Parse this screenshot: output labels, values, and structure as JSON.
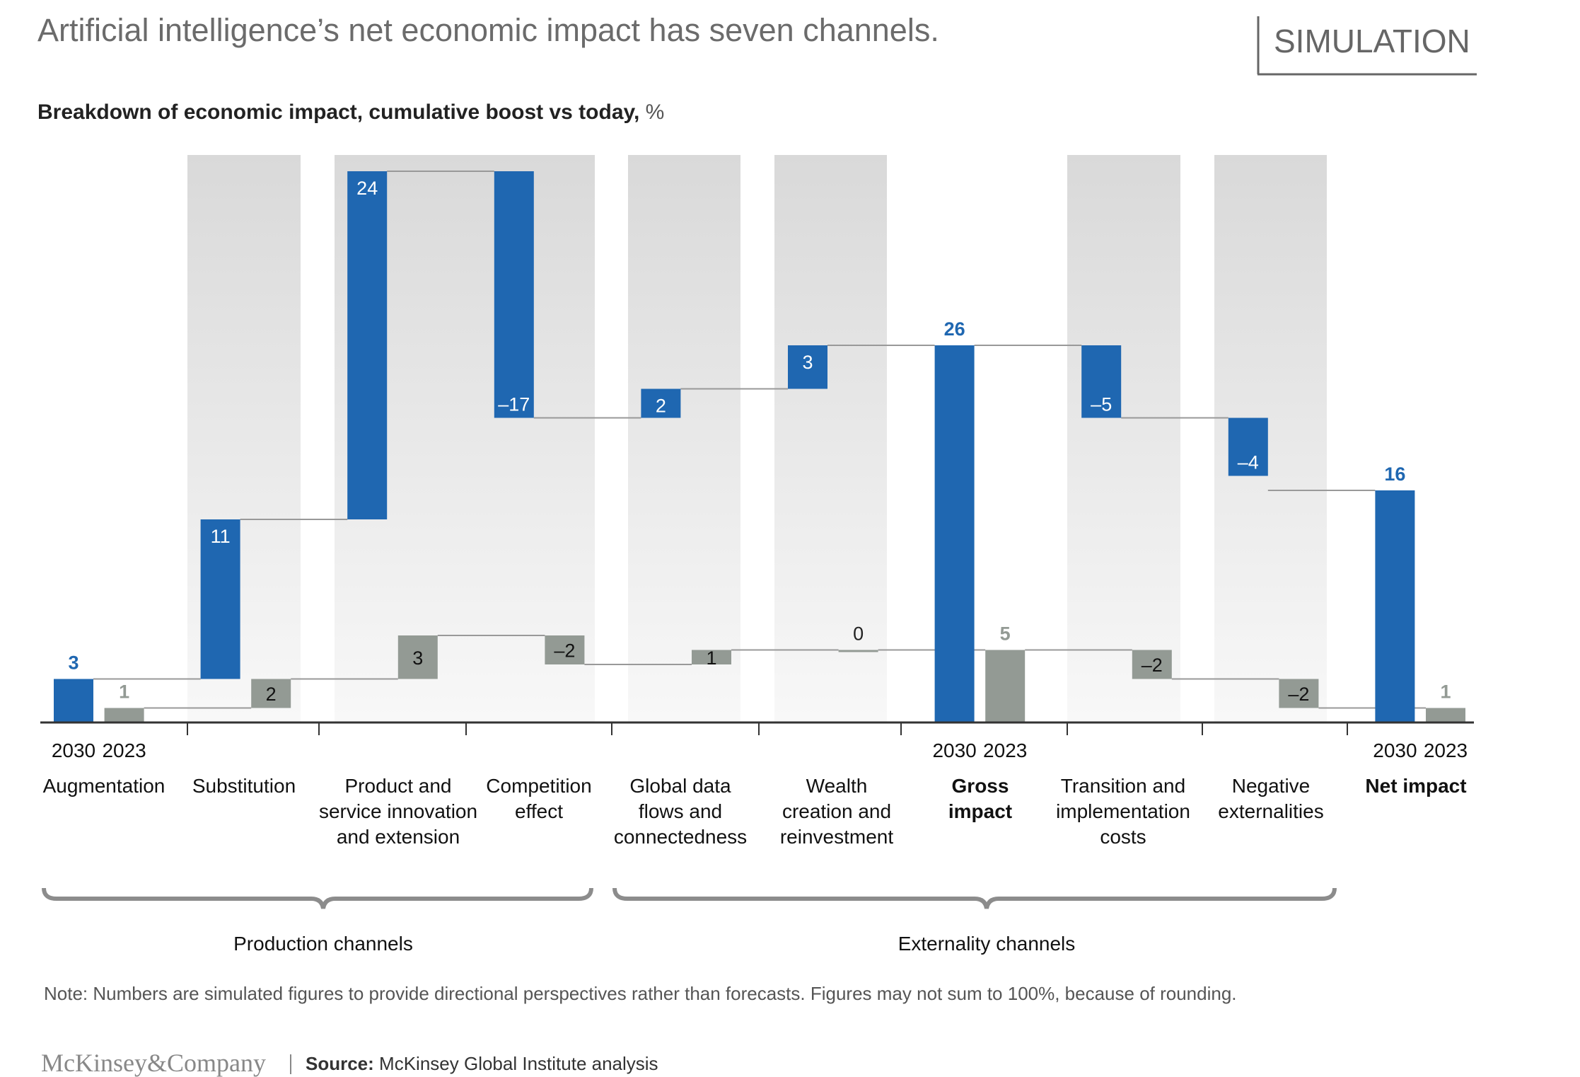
{
  "header": {
    "title": "Artificial intelligence’s net economic impact has seven channels.",
    "badge": "SIMULATION",
    "subtitle": "Breakdown of economic impact, cumulative boost vs today,",
    "subtitle_unit": "%"
  },
  "chart_data": {
    "type": "waterfall",
    "title": "Breakdown of economic impact, cumulative boost vs today, %",
    "categories": [
      {
        "lines": [
          "Augmentation"
        ],
        "bold": false,
        "total": false
      },
      {
        "lines": [
          "Substitution"
        ],
        "bold": false,
        "total": false
      },
      {
        "lines": [
          "Product and",
          "service innovation",
          "and extension"
        ],
        "bold": false,
        "total": false
      },
      {
        "lines": [
          "Competition",
          "effect"
        ],
        "bold": false,
        "total": false
      },
      {
        "lines": [
          "Global data",
          "flows and",
          "connectedness"
        ],
        "bold": false,
        "total": false
      },
      {
        "lines": [
          "Wealth",
          "creation and",
          "reinvestment"
        ],
        "bold": false,
        "total": false
      },
      {
        "lines": [
          "Gross",
          "impact"
        ],
        "bold": true,
        "total": true
      },
      {
        "lines": [
          "Transition and",
          "implementation",
          "costs"
        ],
        "bold": false,
        "total": false
      },
      {
        "lines": [
          "Negative",
          "externalities"
        ],
        "bold": false,
        "total": false
      },
      {
        "lines": [
          "Net impact"
        ],
        "bold": true,
        "total": true
      }
    ],
    "series": [
      {
        "name": "2030",
        "color": "#1f67b1",
        "values": [
          3,
          11,
          24,
          -17,
          2,
          3,
          26,
          -5,
          -4,
          16
        ],
        "labels": [
          "3",
          "11",
          "24",
          "–17",
          "2",
          "3",
          "26",
          "–5",
          "–4",
          "16"
        ]
      },
      {
        "name": "2023",
        "color": "#939a94",
        "values": [
          1,
          2,
          3,
          -2,
          1,
          0,
          5,
          -2,
          -2,
          1
        ],
        "labels": [
          "1",
          "2",
          "3",
          "–2",
          "1",
          "0",
          "5",
          "–2",
          "–2",
          "1"
        ]
      }
    ],
    "year_labels_shown_under": [
      "Augmentation",
      "Gross impact",
      "Net impact"
    ],
    "groups": [
      {
        "label": "Production channels"
      },
      {
        "label": "Externality channels"
      }
    ],
    "ylim": [
      0,
      40
    ]
  },
  "footer": {
    "note": "Note: Numbers are simulated figures to provide directional perspectives rather than forecasts. Figures may not sum to 100%, because of rounding.",
    "logo": "McKinsey&Company",
    "source_label": "Source:",
    "source_text": "McKinsey Global Institute analysis"
  }
}
